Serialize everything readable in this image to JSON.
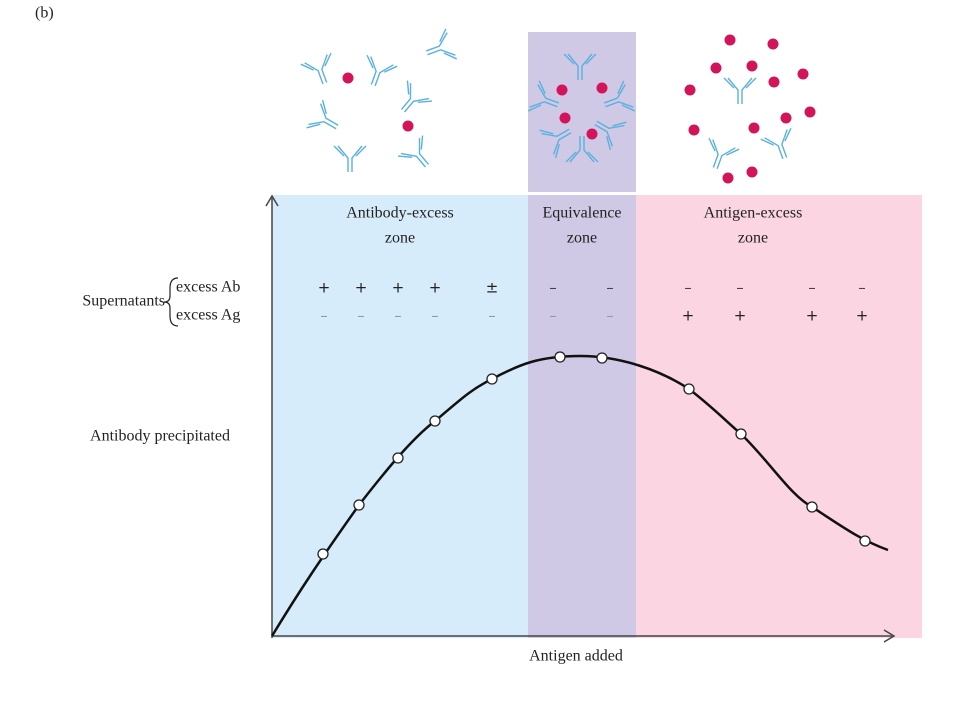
{
  "panel_label": "(b)",
  "zones": [
    {
      "line1": "Antibody-excess",
      "line2": "zone"
    },
    {
      "line1": "Equivalence",
      "line2": "zone"
    },
    {
      "line1": "Antigen-excess",
      "line2": "zone"
    }
  ],
  "supernatants": {
    "label": "Supernatants",
    "rows": [
      {
        "label": "excess Ab",
        "signs": [
          "+",
          "+",
          "+",
          "+",
          "±",
          "–",
          "–",
          "–",
          "–",
          "–",
          "–"
        ]
      },
      {
        "label": "excess Ag",
        "signs": [
          "–",
          "–",
          "–",
          "–",
          "–",
          "–",
          "–",
          "+",
          "+",
          "+",
          "+"
        ]
      }
    ]
  },
  "y_axis_label": "Antibody precipitated",
  "x_axis_label": "Antigen added"
}
